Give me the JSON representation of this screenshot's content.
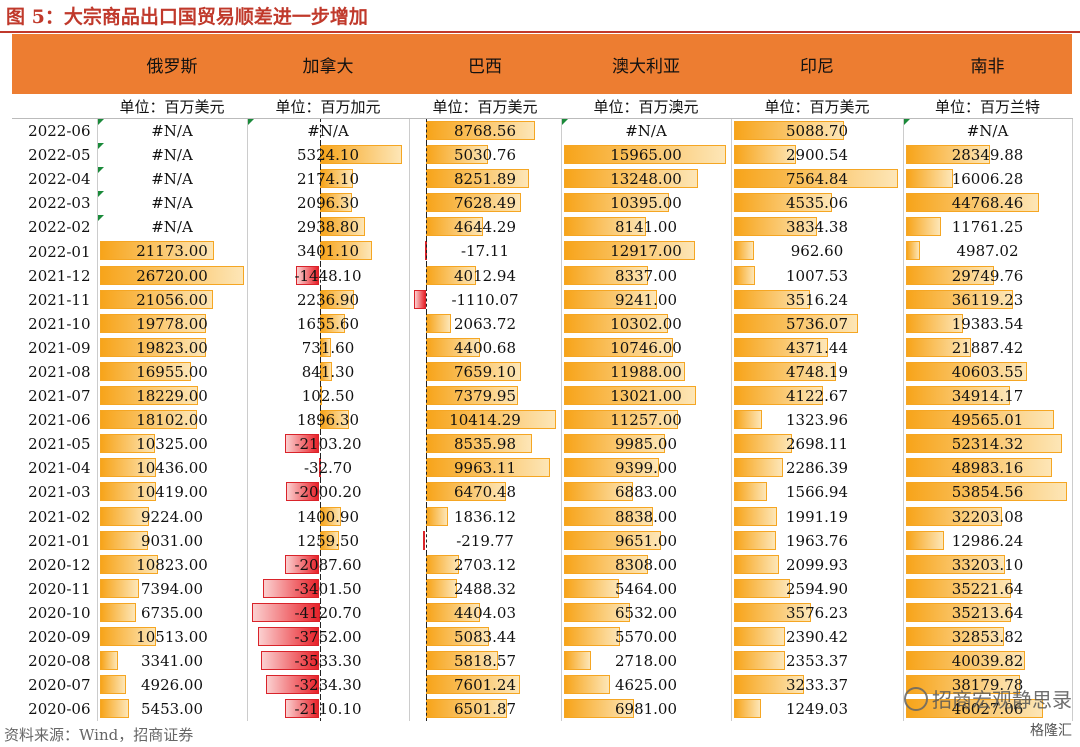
{
  "title": "图 5：大宗商品出口国贸易顺差进一步增加",
  "countries": [
    "俄罗斯",
    "加拿大",
    "巴西",
    "澳大利亚",
    "印尼",
    "南非"
  ],
  "units": [
    "单位：百万美元",
    "单位：百万加元",
    "单位：百万美元",
    "单位：百万澳元",
    "单位：百万美元",
    "单位：百万兰特"
  ],
  "dates": [
    "2022-06",
    "2022-05",
    "2022-04",
    "2022-03",
    "2022-02",
    "2022-01",
    "2021-12",
    "2021-11",
    "2021-10",
    "2021-09",
    "2021-08",
    "2021-07",
    "2021-06",
    "2021-05",
    "2021-04",
    "2021-03",
    "2021-02",
    "2021-01",
    "2020-12",
    "2020-11",
    "2020-10",
    "2020-09",
    "2020-08",
    "2020-07",
    "2020-06"
  ],
  "columns": [
    {
      "values": [
        "#N/A",
        "#N/A",
        "#N/A",
        "#N/A",
        "#N/A",
        "21173.00",
        "26720.00",
        "21056.00",
        "19778.00",
        "19823.00",
        "16955.00",
        "18229.00",
        "18102.00",
        "10325.00",
        "10436.00",
        "10419.00",
        "9224.00",
        "9031.00",
        "10823.00",
        "7394.00",
        "6735.00",
        "10513.00",
        "3341.00",
        "4926.00",
        "5453.00"
      ]
    },
    {
      "values": [
        "#N/A",
        "5324.10",
        "2174.10",
        "2096.30",
        "2938.80",
        "3401.10",
        "-1448.10",
        "2236.90",
        "1655.60",
        "731.60",
        "841.30",
        "102.50",
        "1896.30",
        "-2103.20",
        "-32.70",
        "-2000.20",
        "1400.90",
        "1259.50",
        "-2087.60",
        "-3401.50",
        "-4120.70",
        "-3752.00",
        "-3533.30",
        "-3234.30",
        "-2110.10"
      ]
    },
    {
      "values": [
        "8768.56",
        "5030.76",
        "8251.89",
        "7628.49",
        "4644.29",
        "-17.11",
        "4012.94",
        "-1110.07",
        "2063.72",
        "4400.68",
        "7659.10",
        "7379.95",
        "10414.29",
        "8535.98",
        "9963.11",
        "6470.48",
        "1836.12",
        "-219.77",
        "2703.12",
        "2488.32",
        "4404.03",
        "5083.44",
        "5818.57",
        "7601.24",
        "6501.87"
      ]
    },
    {
      "values": [
        "#N/A",
        "15965.00",
        "13248.00",
        "10395.00",
        "8141.00",
        "12917.00",
        "8337.00",
        "9241.00",
        "10302.00",
        "10746.00",
        "11988.00",
        "13021.00",
        "11257.00",
        "9985.00",
        "9399.00",
        "6883.00",
        "8838.00",
        "9651.00",
        "8308.00",
        "5464.00",
        "6532.00",
        "5570.00",
        "2718.00",
        "4625.00",
        "6981.00"
      ]
    },
    {
      "values": [
        "5088.70",
        "2900.54",
        "7564.84",
        "4535.06",
        "3834.38",
        "962.60",
        "1007.53",
        "3516.24",
        "5736.07",
        "4371.44",
        "4748.19",
        "4122.67",
        "1323.96",
        "2698.11",
        "2286.39",
        "1566.94",
        "1991.19",
        "1963.76",
        "2099.93",
        "2594.90",
        "3576.23",
        "2390.42",
        "2353.37",
        "3233.37",
        "1249.03"
      ]
    },
    {
      "values": [
        "#N/A",
        "28349.88",
        "16006.28",
        "44768.46",
        "11761.25",
        "4987.02",
        "29749.76",
        "36119.23",
        "19383.54",
        "21887.42",
        "40603.55",
        "34914.17",
        "49565.01",
        "52314.32",
        "48983.16",
        "53854.56",
        "32203.08",
        "12986.24",
        "33203.10",
        "35221.64",
        "35213.64",
        "32853.82",
        "40039.82",
        "38179.78",
        "46027.06"
      ]
    }
  ],
  "source": "资料来源：Wind，招商证券",
  "watermark": "招商宏观静思录",
  "watermark_brand": "格隆汇",
  "colors": {
    "title": "#c0392b",
    "header_band": "#ed7d31",
    "bar_positive": "#f7a41a",
    "bar_negative": "#e8222a",
    "flag": "#1a8a3a"
  }
}
